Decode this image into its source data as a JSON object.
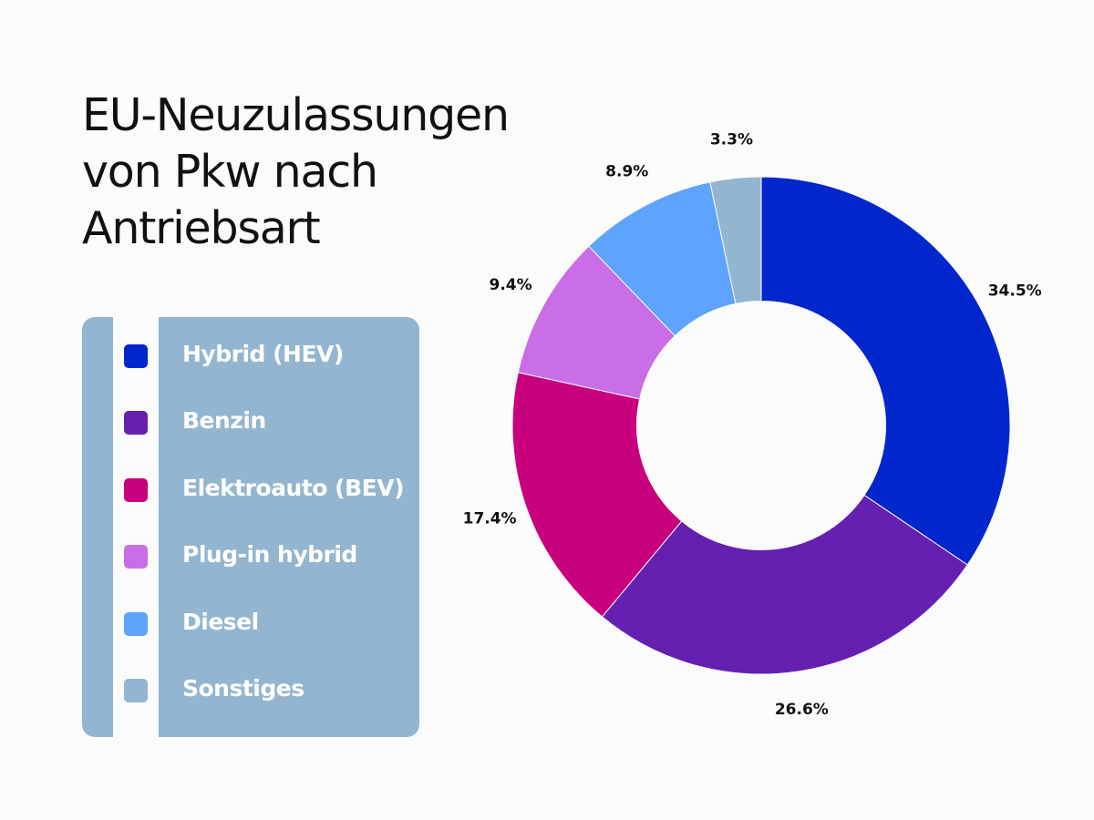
{
  "chart_data": {
    "type": "pie",
    "title": [
      "EU-Neuzulassungen",
      "von Pkw nach",
      "Antriebsart"
    ],
    "hole": 0.5,
    "legend_position": "left",
    "slices": [
      {
        "label": "Hybrid (HEV)",
        "value": 34.5,
        "value_label": "34.5%",
        "color": "#0127cc"
      },
      {
        "label": "Benzin",
        "value": 26.6,
        "value_label": "26.6%",
        "color": "#6520b0"
      },
      {
        "label": "Elektroauto (BEV)",
        "value": 17.4,
        "value_label": "17.4%",
        "color": "#c8007d"
      },
      {
        "label": "Plug-in hybrid",
        "value": 9.4,
        "value_label": "9.4%",
        "color": "#c96ee7"
      },
      {
        "label": "Diesel",
        "value": 8.9,
        "value_label": "8.9%",
        "color": "#5ea3fd"
      },
      {
        "label": "Sonstiges",
        "value": 3.3,
        "value_label": "3.3%",
        "color": "#93b5d0"
      }
    ]
  }
}
